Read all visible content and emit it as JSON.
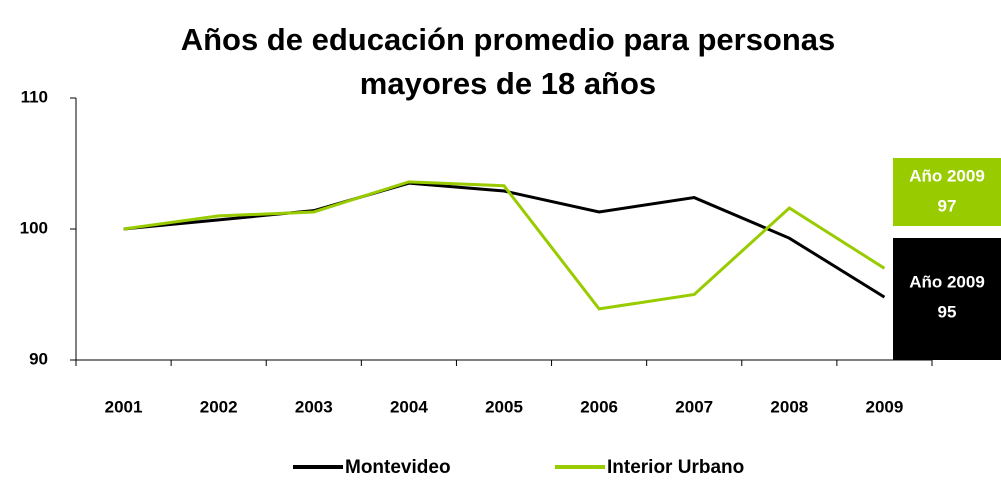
{
  "chart_data": {
    "type": "line",
    "title": [
      "Años de educación promedio para personas",
      "mayores de 18 años"
    ],
    "categories": [
      "2001",
      "2002",
      "2003",
      "2004",
      "2005",
      "2006",
      "2007",
      "2008",
      "2009"
    ],
    "series": [
      {
        "name": "Montevideo",
        "color": "#000000",
        "values": [
          100,
          100.7,
          101.4,
          103.5,
          102.9,
          101.3,
          102.4,
          99.3,
          94.8
        ],
        "end_label": [
          "Año 2009",
          "95"
        ]
      },
      {
        "name": "Interior Urbano",
        "color": "#99cc00",
        "values": [
          100,
          101.0,
          101.3,
          103.6,
          103.3,
          93.9,
          95.0,
          101.6,
          97.0
        ],
        "end_label": [
          "Año 2009",
          "97"
        ]
      }
    ],
    "ylim": [
      90,
      110
    ],
    "yticks": [
      90,
      100,
      110
    ],
    "grid": false,
    "legend": "bottom"
  }
}
